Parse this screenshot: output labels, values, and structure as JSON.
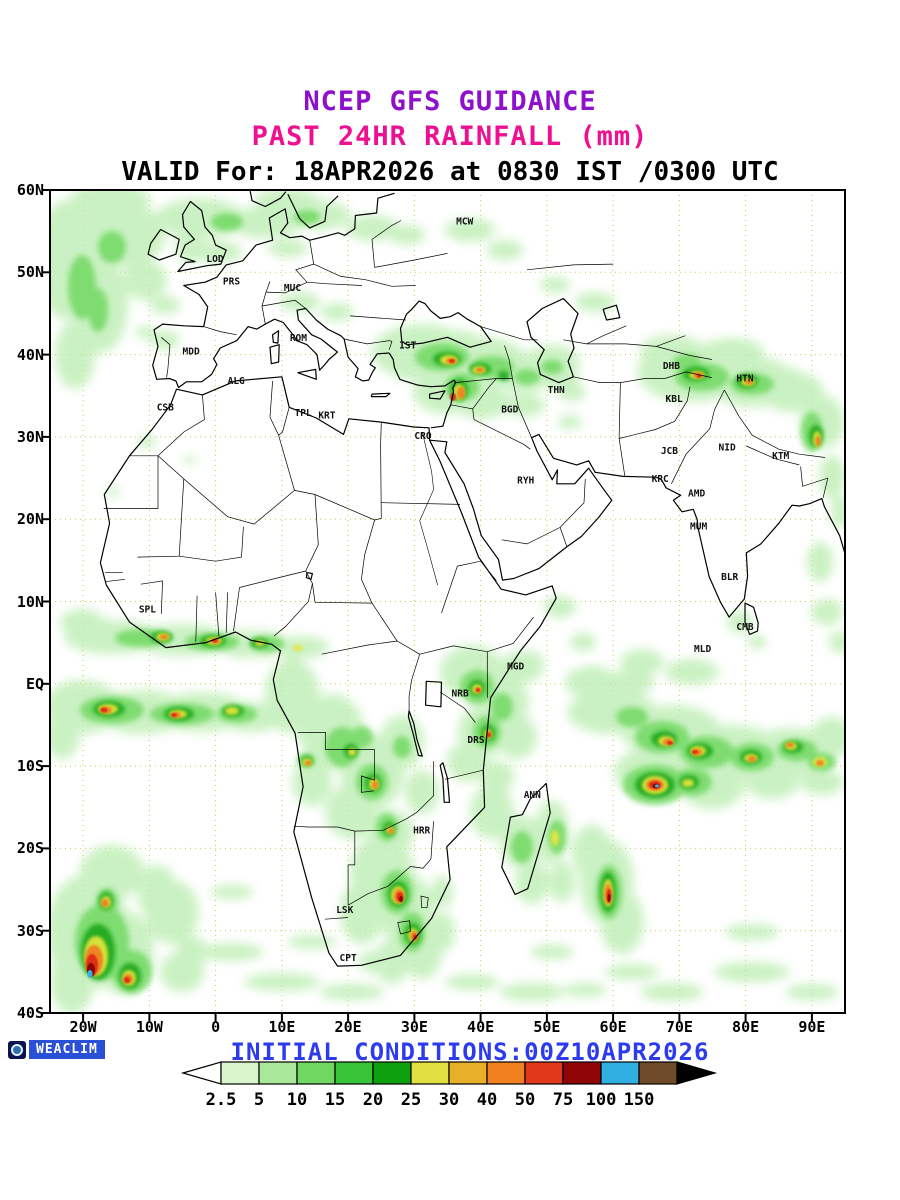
{
  "title": {
    "line1": "NCEP GFS GUIDANCE",
    "line2": "PAST 24HR RAINFALL (mm)",
    "line3": "VALID For: 18APR2026 at 0830 IST /0300 UTC"
  },
  "colors": {
    "title1": "#8e10cc",
    "title2": "#ee1090",
    "valid_text": "#000000",
    "initial_text": "#2d3bee",
    "grid_line": "#c9c95a",
    "logo_bg": "#2b50d8",
    "logo_text_color": "#ffffff"
  },
  "map": {
    "x_ticks": [
      "20W",
      "10W",
      "0",
      "10E",
      "20E",
      "30E",
      "40E",
      "50E",
      "60E",
      "70E",
      "80E",
      "90E"
    ],
    "y_ticks": [
      "60N",
      "50N",
      "40N",
      "30N",
      "20N",
      "10N",
      "EQ",
      "10S",
      "20S",
      "30S",
      "40S"
    ],
    "cities": [
      {
        "code": "MCW",
        "lon": 37.6,
        "lat": 56.2
      },
      {
        "code": "LOD",
        "lon": -0.1,
        "lat": 51.6
      },
      {
        "code": "PRS",
        "lon": 2.4,
        "lat": 48.9
      },
      {
        "code": "MUC",
        "lon": 11.6,
        "lat": 48.1
      },
      {
        "code": "ROM",
        "lon": 12.5,
        "lat": 42.0
      },
      {
        "code": "MDD",
        "lon": -3.7,
        "lat": 40.4
      },
      {
        "code": "ALG",
        "lon": 3.1,
        "lat": 36.8
      },
      {
        "code": "CSB",
        "lon": -7.6,
        "lat": 33.6
      },
      {
        "code": "TPL",
        "lon": 13.2,
        "lat": 32.9
      },
      {
        "code": "KRT",
        "lon": 16.8,
        "lat": 32.6
      },
      {
        "code": "IST",
        "lon": 29.0,
        "lat": 41.1
      },
      {
        "code": "CRO",
        "lon": 31.3,
        "lat": 30.1
      },
      {
        "code": "BGD",
        "lon": 44.4,
        "lat": 33.3
      },
      {
        "code": "THN",
        "lon": 51.4,
        "lat": 35.7
      },
      {
        "code": "RYH",
        "lon": 46.8,
        "lat": 24.7
      },
      {
        "code": "DHB",
        "lon": 68.8,
        "lat": 38.6
      },
      {
        "code": "HTN",
        "lon": 79.9,
        "lat": 37.1
      },
      {
        "code": "KBL",
        "lon": 69.2,
        "lat": 34.6
      },
      {
        "code": "JCB",
        "lon": 68.5,
        "lat": 28.3
      },
      {
        "code": "NID",
        "lon": 77.2,
        "lat": 28.7
      },
      {
        "code": "KTM",
        "lon": 85.3,
        "lat": 27.7
      },
      {
        "code": "KRC",
        "lon": 67.1,
        "lat": 24.9
      },
      {
        "code": "AMD",
        "lon": 72.6,
        "lat": 23.1
      },
      {
        "code": "MUM",
        "lon": 72.9,
        "lat": 19.1
      },
      {
        "code": "BLR",
        "lon": 77.6,
        "lat": 13.0
      },
      {
        "code": "CMB",
        "lon": 79.9,
        "lat": 6.9
      },
      {
        "code": "MLD",
        "lon": 73.5,
        "lat": 4.2
      },
      {
        "code": "SPL",
        "lon": -10.3,
        "lat": 9.0
      },
      {
        "code": "MGD",
        "lon": 45.3,
        "lat": 2.1
      },
      {
        "code": "NRB",
        "lon": 36.9,
        "lat": -1.2
      },
      {
        "code": "DRS",
        "lon": 39.3,
        "lat": -6.8
      },
      {
        "code": "ANN",
        "lon": 47.8,
        "lat": -13.5
      },
      {
        "code": "HRR",
        "lon": 31.1,
        "lat": -17.8
      },
      {
        "code": "LSK",
        "lon": 19.5,
        "lat": -27.5
      },
      {
        "code": "CPT",
        "lon": 20.0,
        "lat": -33.3
      }
    ]
  },
  "footer": {
    "logo_text": "WEACLIM",
    "initial_conditions": "INITIAL CONDITIONS:00Z10APR2026"
  },
  "colorbar": {
    "labels": [
      "2.5",
      "5",
      "10",
      "15",
      "20",
      "25",
      "30",
      "40",
      "50",
      "75",
      "100",
      "150"
    ],
    "cell_colors": [
      "#d8f5cc",
      "#a8e898",
      "#70d860",
      "#38c438",
      "#0fa00f",
      "#e0e040",
      "#e8b028",
      "#f08020",
      "#e03818",
      "#900606",
      "#30b0e0",
      "#6e4a28"
    ],
    "under_arrow_color": "#ffffff",
    "over_arrow_color": "#000000"
  }
}
